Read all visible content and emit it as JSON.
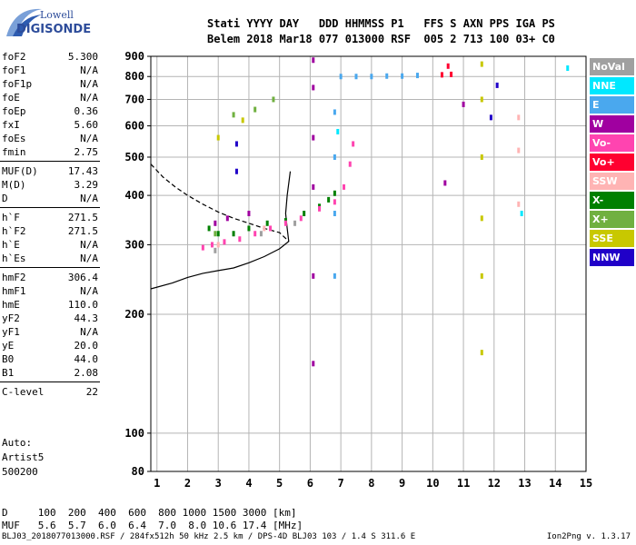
{
  "header": {
    "line1": "Stati YYYY DAY   DDD HHMMSS P1   FFS S AXN PPS IGA PS",
    "line2": "Belem 2018 Mar18 077 013000 RSF  005 2 713 100 03+ C0"
  },
  "logo": {
    "line1": "Lowell",
    "line2": "DIGISONDE"
  },
  "params": [
    {
      "name": "foF2",
      "value": "5.300"
    },
    {
      "name": "foF1",
      "value": "N/A"
    },
    {
      "name": "foF1p",
      "value": "N/A"
    },
    {
      "name": "foE",
      "value": "N/A"
    },
    {
      "name": "foEp",
      "value": "0.36"
    },
    {
      "name": "fxI",
      "value": "5.60"
    },
    {
      "name": "foEs",
      "value": "N/A"
    },
    {
      "name": "fmin",
      "value": "2.75"
    },
    {
      "name": "MUF(D)",
      "value": "17.43"
    },
    {
      "name": "M(D)",
      "value": "3.29"
    },
    {
      "name": "D",
      "value": "N/A"
    },
    {
      "name": "h`F",
      "value": "271.5"
    },
    {
      "name": "h`F2",
      "value": "271.5"
    },
    {
      "name": "h`E",
      "value": "N/A"
    },
    {
      "name": "h`Es",
      "value": "N/A"
    },
    {
      "name": "hmF2",
      "value": "306.4"
    },
    {
      "name": "hmF1",
      "value": "N/A"
    },
    {
      "name": "hmE",
      "value": "110.0"
    },
    {
      "name": "yF2",
      "value": "44.3"
    },
    {
      "name": "yF1",
      "value": "N/A"
    },
    {
      "name": "yE",
      "value": "20.0"
    },
    {
      "name": "B0",
      "value": "44.0"
    },
    {
      "name": "B1",
      "value": "2.08"
    },
    {
      "name": "C-level",
      "value": "22"
    }
  ],
  "auto": {
    "line1": "Auto:",
    "line2": "Artist5",
    "line3": "500200"
  },
  "legend": [
    {
      "label": "NoVal",
      "color": "#a0a0a0"
    },
    {
      "label": "NNE",
      "color": "#00e8ff"
    },
    {
      "label": "E",
      "color": "#4aa8ee"
    },
    {
      "label": "W",
      "color": "#a000a0"
    },
    {
      "label": "Vo-",
      "color": "#ff44b0"
    },
    {
      "label": "Vo+",
      "color": "#ff0030"
    },
    {
      "label": "SSW",
      "color": "#ffb4b4"
    },
    {
      "label": "X-",
      "color": "#008000"
    },
    {
      "label": "X+",
      "color": "#70b040"
    },
    {
      "label": "SSE",
      "color": "#c8c800"
    },
    {
      "label": "NNW",
      "color": "#2000c8"
    }
  ],
  "dmuf": {
    "d_line": "D     100  200  400  600  800 1000 1500 3000 [km]",
    "muf_line": "MUF   5.6  5.7  6.0  6.4  7.0  8.0 10.6 17.4 [MHz]"
  },
  "footer": {
    "left": "BLJ03_2018077013000.RSF / 284fx512h 50 kHz 2.5 km / DPS-4D BLJ03 103 / 1.4 S 311.6 E",
    "right": "Ion2Png v. 1.3.17"
  },
  "chart_data": {
    "type": "scatter",
    "xlim": [
      0.8,
      15
    ],
    "ylim": [
      80,
      900
    ],
    "y_scale": "log",
    "xticks": [
      1,
      2,
      3,
      4,
      5,
      6,
      7,
      8,
      9,
      10,
      11,
      12,
      13,
      14,
      15
    ],
    "yticks": [
      80,
      100,
      200,
      300,
      400,
      500,
      600,
      700,
      800,
      900
    ],
    "grid": true,
    "series": [
      {
        "name": "X-",
        "color": "#008000",
        "points": [
          [
            2.7,
            330
          ],
          [
            3.0,
            320
          ],
          [
            3.5,
            320
          ],
          [
            4.0,
            330
          ],
          [
            4.6,
            340
          ],
          [
            5.2,
            345
          ],
          [
            5.8,
            360
          ],
          [
            6.3,
            375
          ],
          [
            6.6,
            390
          ],
          [
            6.8,
            405
          ]
        ]
      },
      {
        "name": "Vo-",
        "color": "#ff44b0",
        "points": [
          [
            2.5,
            295
          ],
          [
            2.8,
            300
          ],
          [
            3.2,
            305
          ],
          [
            3.7,
            310
          ],
          [
            4.2,
            320
          ],
          [
            4.7,
            330
          ],
          [
            5.2,
            340
          ],
          [
            5.7,
            350
          ],
          [
            6.3,
            370
          ],
          [
            6.8,
            385
          ],
          [
            7.1,
            420
          ],
          [
            7.3,
            480
          ],
          [
            7.4,
            540
          ]
        ]
      },
      {
        "name": "E",
        "color": "#4aa8ee",
        "points": [
          [
            7.0,
            800
          ],
          [
            7.5,
            800
          ],
          [
            8.0,
            800
          ],
          [
            8.5,
            802
          ],
          [
            9.0,
            802
          ],
          [
            9.5,
            805
          ],
          [
            6.8,
            650
          ],
          [
            6.8,
            500
          ],
          [
            6.8,
            360
          ],
          [
            6.8,
            250
          ]
        ]
      },
      {
        "name": "W",
        "color": "#a000a0",
        "points": [
          [
            2.9,
            340
          ],
          [
            3.3,
            350
          ],
          [
            4.0,
            360
          ],
          [
            6.1,
            880
          ],
          [
            6.1,
            750
          ],
          [
            6.1,
            560
          ],
          [
            6.1,
            420
          ],
          [
            6.1,
            250
          ],
          [
            6.1,
            150
          ],
          [
            10.4,
            430
          ],
          [
            11.0,
            680
          ]
        ]
      },
      {
        "name": "Vo+",
        "color": "#ff0030",
        "points": [
          [
            10.3,
            808
          ],
          [
            10.6,
            810
          ],
          [
            10.5,
            850
          ]
        ]
      },
      {
        "name": "SSW",
        "color": "#ffb4b4",
        "points": [
          [
            3.0,
            300
          ],
          [
            4.5,
            330
          ],
          [
            12.8,
            630
          ],
          [
            12.8,
            520
          ],
          [
            12.8,
            380
          ]
        ]
      },
      {
        "name": "X+",
        "color": "#70b040",
        "points": [
          [
            3.5,
            640
          ],
          [
            4.2,
            660
          ],
          [
            4.8,
            700
          ],
          [
            2.9,
            320
          ]
        ]
      },
      {
        "name": "SSE",
        "color": "#c8c800",
        "points": [
          [
            11.6,
            860
          ],
          [
            11.6,
            700
          ],
          [
            11.6,
            500
          ],
          [
            11.6,
            350
          ],
          [
            11.6,
            250
          ],
          [
            11.6,
            160
          ],
          [
            3.0,
            560
          ],
          [
            3.8,
            620
          ]
        ]
      },
      {
        "name": "NNE",
        "color": "#00e8ff",
        "points": [
          [
            14.4,
            840
          ],
          [
            12.9,
            360
          ],
          [
            6.9,
            580
          ]
        ]
      },
      {
        "name": "NNW",
        "color": "#2000c8",
        "points": [
          [
            3.6,
            540
          ],
          [
            3.6,
            460
          ],
          [
            11.9,
            630
          ],
          [
            12.1,
            760
          ]
        ]
      },
      {
        "name": "NoVal",
        "color": "#a0a0a0",
        "points": [
          [
            2.9,
            290
          ],
          [
            4.4,
            320
          ],
          [
            5.5,
            340
          ]
        ]
      }
    ],
    "profile_curves": [
      {
        "style": "solid",
        "points": [
          [
            0.8,
            232
          ],
          [
            1.5,
            240
          ],
          [
            2.0,
            248
          ],
          [
            2.5,
            254
          ],
          [
            3.0,
            258
          ],
          [
            3.5,
            262
          ],
          [
            4.0,
            270
          ],
          [
            4.5,
            280
          ],
          [
            5.0,
            293
          ],
          [
            5.3,
            306
          ],
          [
            5.25,
            330
          ],
          [
            5.2,
            360
          ],
          [
            5.25,
            400
          ],
          [
            5.35,
            460
          ]
        ]
      },
      {
        "style": "dashed",
        "points": [
          [
            0.8,
            480
          ],
          [
            1.2,
            445
          ],
          [
            1.6,
            420
          ],
          [
            2.0,
            400
          ],
          [
            2.5,
            380
          ],
          [
            3.0,
            363
          ],
          [
            3.5,
            350
          ],
          [
            4.0,
            340
          ],
          [
            4.5,
            330
          ],
          [
            5.0,
            322
          ],
          [
            5.3,
            306
          ]
        ]
      }
    ]
  }
}
